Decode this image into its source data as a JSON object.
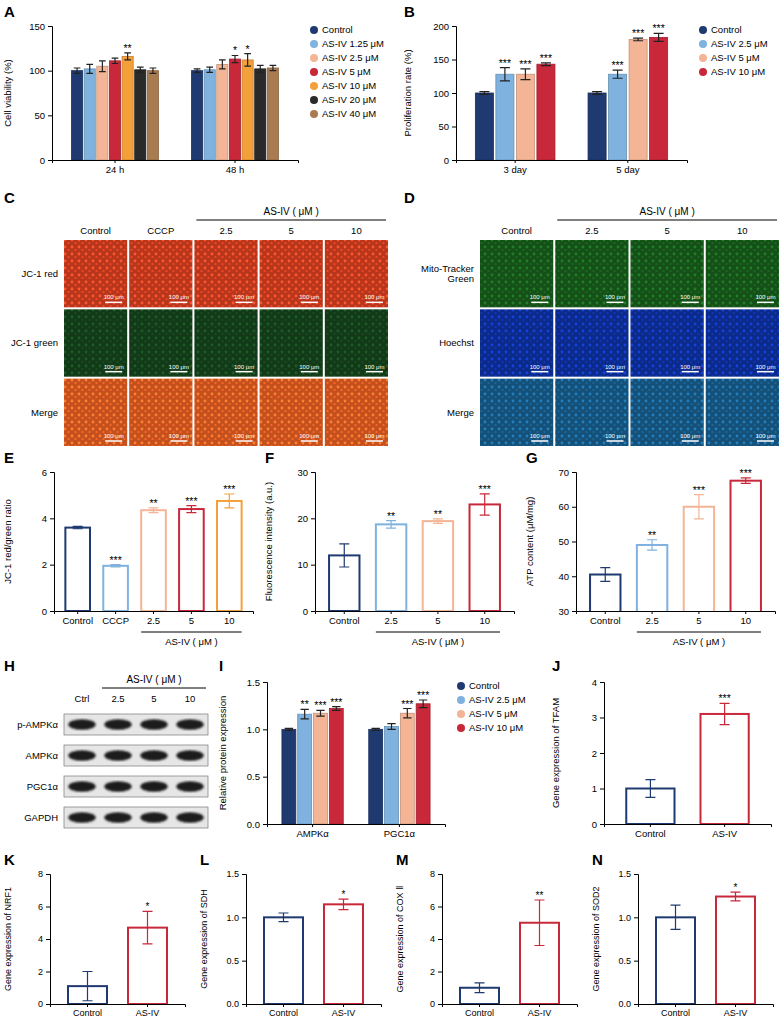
{
  "chart_data": [
    {
      "panel": "A",
      "type": "bar",
      "ylabel": "Cell viability (%)",
      "categories": [
        "24 h",
        "48 h"
      ],
      "series": [
        {
          "name": "Control",
          "color": "#1f3a70",
          "values": [
            100,
            100
          ],
          "errors": [
            3,
            2
          ]
        },
        {
          "name": "AS-IV 1.25 μM",
          "color": "#7fb2de",
          "values": [
            102,
            101
          ],
          "errors": [
            5,
            3
          ]
        },
        {
          "name": "AS-IV 2.5 μM",
          "color": "#f3b596",
          "values": [
            105,
            107
          ],
          "errors": [
            6,
            5
          ]
        },
        {
          "name": "AS-IV 5 μM",
          "color": "#c8283a",
          "values": [
            111,
            113
          ],
          "errors": [
            3,
            4
          ],
          "significance": [
            null,
            "*"
          ]
        },
        {
          "name": "AS-IV 10 μM",
          "color": "#f4a03a",
          "values": [
            116,
            112
          ],
          "errors": [
            4,
            7
          ],
          "significance": [
            "**",
            "*"
          ]
        },
        {
          "name": "AS-IV 20 μM",
          "color": "#2a2a2a",
          "values": [
            101,
            102
          ],
          "errors": [
            3,
            4
          ]
        },
        {
          "name": "AS-IV 40 μM",
          "color": "#a97b50",
          "values": [
            100,
            103
          ],
          "errors": [
            3,
            3
          ]
        }
      ],
      "ylim": [
        0,
        150
      ],
      "yticks": [
        0,
        50,
        100,
        150
      ],
      "legend": "right"
    },
    {
      "panel": "B",
      "type": "bar",
      "ylabel": "Proliferation rate (%)",
      "categories": [
        "3 day",
        "5 day"
      ],
      "series": [
        {
          "name": "Control",
          "color": "#1f3a70",
          "values": [
            100,
            100
          ],
          "errors": [
            2,
            2
          ]
        },
        {
          "name": "AS-IV 2.5 μM",
          "color": "#7fb2de",
          "values": [
            128,
            128
          ],
          "errors": [
            10,
            6
          ],
          "significance": [
            "***",
            "***"
          ]
        },
        {
          "name": "AS-IV 5 μM",
          "color": "#f3b596",
          "values": [
            128,
            180
          ],
          "errors": [
            8,
            2
          ],
          "significance": [
            "***",
            "***"
          ]
        },
        {
          "name": "AS-IV 10 μM",
          "color": "#c8283a",
          "values": [
            143,
            183
          ],
          "errors": [
            2,
            6
          ],
          "significance": [
            "***",
            "***"
          ]
        }
      ],
      "ylim": [
        0,
        200
      ],
      "yticks": [
        0,
        50,
        100,
        150,
        200
      ],
      "legend": "right"
    },
    {
      "panel": "E",
      "type": "bar",
      "ylabel": "JC-1 red/green ratio",
      "xlabel": "AS-IV ( μM )",
      "categories": [
        "Control",
        "CCCP",
        "2.5",
        "5",
        "10"
      ],
      "values": [
        3.6,
        1.95,
        4.35,
        4.4,
        4.75
      ],
      "errors": [
        0.05,
        0.05,
        0.1,
        0.15,
        0.3
      ],
      "significance": [
        null,
        "***",
        "**",
        "***",
        "***"
      ],
      "colors": [
        "#1f3a70",
        "#7fb2de",
        "#f3b596",
        "#c8283a",
        "#f4a03a"
      ],
      "ylim": [
        0,
        6
      ],
      "yticks": [
        0,
        2,
        4,
        6
      ]
    },
    {
      "panel": "F",
      "type": "bar",
      "ylabel": "Fluorescence intensity (a.u.)",
      "xlabel": "AS-IV ( μM )",
      "categories": [
        "Control",
        "2.5",
        "5",
        "10"
      ],
      "values": [
        12,
        18.7,
        19.4,
        23
      ],
      "errors": [
        2.5,
        0.8,
        0.5,
        2.3
      ],
      "significance": [
        null,
        "**",
        "**",
        "***"
      ],
      "colors": [
        "#1f3a70",
        "#7fb2de",
        "#f3b596",
        "#c8283a"
      ],
      "ylim": [
        0,
        30
      ],
      "yticks": [
        0,
        10,
        20,
        30
      ]
    },
    {
      "panel": "G",
      "type": "bar",
      "ylabel": "ATP content (μM/mg)",
      "xlabel": "AS-IV ( μM )",
      "categories": [
        "Control",
        "2.5",
        "5",
        "10"
      ],
      "values": [
        40.5,
        49,
        60,
        67.5
      ],
      "errors": [
        2,
        1.5,
        3.5,
        0.8
      ],
      "significance": [
        null,
        "**",
        "***",
        "***"
      ],
      "colors": [
        "#1f3a70",
        "#7fb2de",
        "#f3b596",
        "#c8283a"
      ],
      "ylim": [
        30,
        70
      ],
      "yticks": [
        30,
        40,
        50,
        60,
        70
      ]
    },
    {
      "panel": "I",
      "type": "bar",
      "ylabel": "Relative protein expression",
      "categories": [
        "AMPKα",
        "PGC1α"
      ],
      "series": [
        {
          "name": "Control",
          "color": "#1f3a70",
          "values": [
            1.0,
            1.0
          ],
          "errors": [
            0.01,
            0.01
          ]
        },
        {
          "name": "AS-IV 2.5 μM",
          "color": "#7fb2de",
          "values": [
            1.16,
            1.03
          ],
          "errors": [
            0.05,
            0.03
          ],
          "significance": [
            "**",
            null
          ]
        },
        {
          "name": "AS-IV 5 μM",
          "color": "#f3b596",
          "values": [
            1.17,
            1.17
          ],
          "errors": [
            0.03,
            0.05
          ],
          "significance": [
            "***",
            "***"
          ]
        },
        {
          "name": "AS-IV 10 μM",
          "color": "#c8283a",
          "values": [
            1.22,
            1.27
          ],
          "errors": [
            0.02,
            0.04
          ],
          "significance": [
            "***",
            "***"
          ]
        }
      ],
      "ylim": [
        0,
        1.5
      ],
      "yticks": [
        {
          "value": 0,
          "label": "0.0"
        },
        {
          "value": 0.5,
          "label": "0.5"
        },
        {
          "value": 1,
          "label": "1.0"
        },
        {
          "value": 1.5,
          "label": "1.5"
        }
      ],
      "legend": "right"
    },
    {
      "panel": "J",
      "type": "bar",
      "ylabel": "Gene expression of TFAM",
      "categories": [
        "Control",
        "AS-IV"
      ],
      "values": [
        1.0,
        3.1
      ],
      "errors": [
        0.25,
        0.3
      ],
      "significance": [
        null,
        "***"
      ],
      "colors": [
        "#1f3a70",
        "#c8283a"
      ],
      "ylim": [
        0,
        4
      ],
      "yticks": [
        0,
        1,
        2,
        3,
        4
      ]
    },
    {
      "panel": "K",
      "type": "bar",
      "ylabel": "Gene expression of NRF1",
      "categories": [
        "Control",
        "AS-IV"
      ],
      "values": [
        1.1,
        4.7
      ],
      "errors": [
        0.9,
        1.0
      ],
      "significance": [
        null,
        "*"
      ],
      "colors": [
        "#1f3a70",
        "#c8283a"
      ],
      "ylim": [
        0,
        8
      ],
      "yticks": [
        0,
        2,
        4,
        6,
        8
      ]
    },
    {
      "panel": "L",
      "type": "bar",
      "ylabel": "Gene expression of SDH",
      "categories": [
        "Control",
        "AS-IV"
      ],
      "values": [
        1.0,
        1.15
      ],
      "errors": [
        0.05,
        0.06
      ],
      "significance": [
        null,
        "*"
      ],
      "colors": [
        "#1f3a70",
        "#c8283a"
      ],
      "ylim": [
        0,
        1.5
      ],
      "yticks": [
        {
          "value": 0,
          "label": "0.0"
        },
        {
          "value": 0.5,
          "label": "0.5"
        },
        {
          "value": 1,
          "label": "1.0"
        },
        {
          "value": 1.5,
          "label": "1.5"
        }
      ]
    },
    {
      "panel": "M",
      "type": "bar",
      "ylabel": "Gene expression of COX Ⅱ",
      "categories": [
        "Control",
        "AS-IV"
      ],
      "values": [
        1.0,
        5.0
      ],
      "errors": [
        0.3,
        1.4
      ],
      "significance": [
        null,
        "**"
      ],
      "colors": [
        "#1f3a70",
        "#c8283a"
      ],
      "ylim": [
        0,
        8
      ],
      "yticks": [
        0,
        2,
        4,
        6,
        8
      ]
    },
    {
      "panel": "N",
      "type": "bar",
      "ylabel": "Gene expression of SOD2",
      "categories": [
        "Control",
        "AS-IV"
      ],
      "values": [
        1.0,
        1.24
      ],
      "errors": [
        0.14,
        0.05
      ],
      "significance": [
        null,
        "*"
      ],
      "colors": [
        "#1f3a70",
        "#c8283a"
      ],
      "ylim": [
        0,
        1.5
      ],
      "yticks": [
        {
          "value": 0,
          "label": "0.0"
        },
        {
          "value": 0.5,
          "label": "0.5"
        },
        {
          "value": 1,
          "label": "1.0"
        },
        {
          "value": 1.5,
          "label": "1.5"
        }
      ]
    }
  ],
  "image_panels": [
    {
      "panel": "C",
      "type": "micrograph",
      "columns": [
        "Control",
        "CCCP",
        "2.5",
        "5",
        "10"
      ],
      "column_group": "AS-IV ( μM )",
      "rows": [
        "JC-1 red",
        "JC-1 green",
        "Merge"
      ],
      "colors": [
        "#b8361c",
        "#123a18",
        "#c4501e"
      ],
      "scale_bar": "100 μm"
    },
    {
      "panel": "D",
      "type": "micrograph",
      "columns": [
        "Control",
        "2.5",
        "5",
        "10"
      ],
      "column_group": "AS-IV ( μM )",
      "rows": [
        "Mito-Tracker Green",
        "Hoechst",
        "Merge"
      ],
      "colors": [
        "#145018",
        "#0c2a8a",
        "#155078"
      ],
      "scale_bar": "100 μm"
    },
    {
      "panel": "H",
      "type": "western_blot",
      "columns": [
        "Ctrl",
        "2.5",
        "5",
        "10"
      ],
      "column_group": "AS-IV ( μM )",
      "rows": [
        "p-AMPKα",
        "AMPKα",
        "PGC1α",
        "GAPDH"
      ]
    }
  ]
}
